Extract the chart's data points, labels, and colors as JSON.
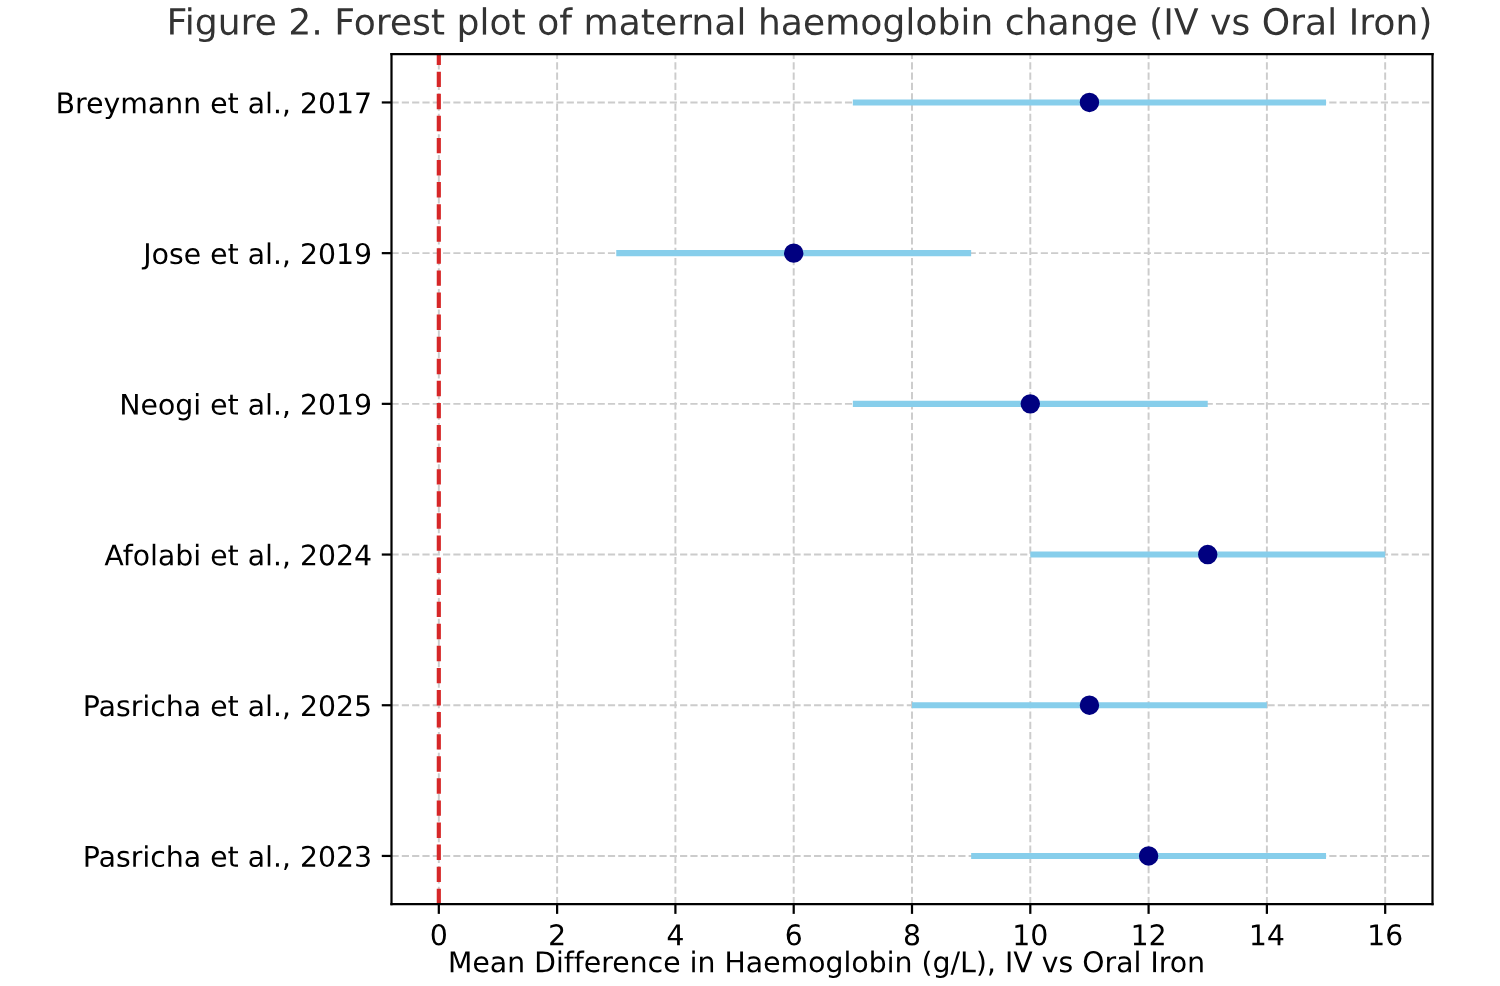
{
  "chart_data": {
    "type": "scatter",
    "orientation": "horizontal",
    "title": "Figure 2. Forest plot of maternal haemoglobin change (IV vs Oral Iron)",
    "xlabel": "Mean Difference in Haemoglobin (g/L), IV vs Oral Iron",
    "categories": [
      "Breymann et al., 2017",
      "Jose et al., 2019",
      "Neogi et al., 2019",
      "Afolabi et al., 2024",
      "Pasricha et al., 2025",
      "Pasricha et al., 2023"
    ],
    "series": [
      {
        "color": "#87ceeb",
        "colors": [
          "#000080",
          "#000080",
          "#000080",
          "#000080",
          "#000080",
          "#000080"
        ],
        "values": [
          11,
          6,
          10,
          13,
          11,
          12
        ],
        "errors": [
          [
            7,
            15
          ],
          [
            3,
            9
          ],
          [
            7,
            13
          ],
          [
            10,
            16
          ],
          [
            8,
            14
          ],
          [
            9,
            15
          ]
        ]
      }
    ],
    "xlim": [
      -0.8,
      16.8
    ],
    "xticks": [
      0,
      2,
      4,
      6,
      8,
      10,
      12,
      14,
      16
    ],
    "ref_lines": [
      {
        "axis": "x",
        "value": 0,
        "color": "#d62728",
        "line_style": "dashed"
      }
    ],
    "grid": true,
    "marker": "circle"
  }
}
